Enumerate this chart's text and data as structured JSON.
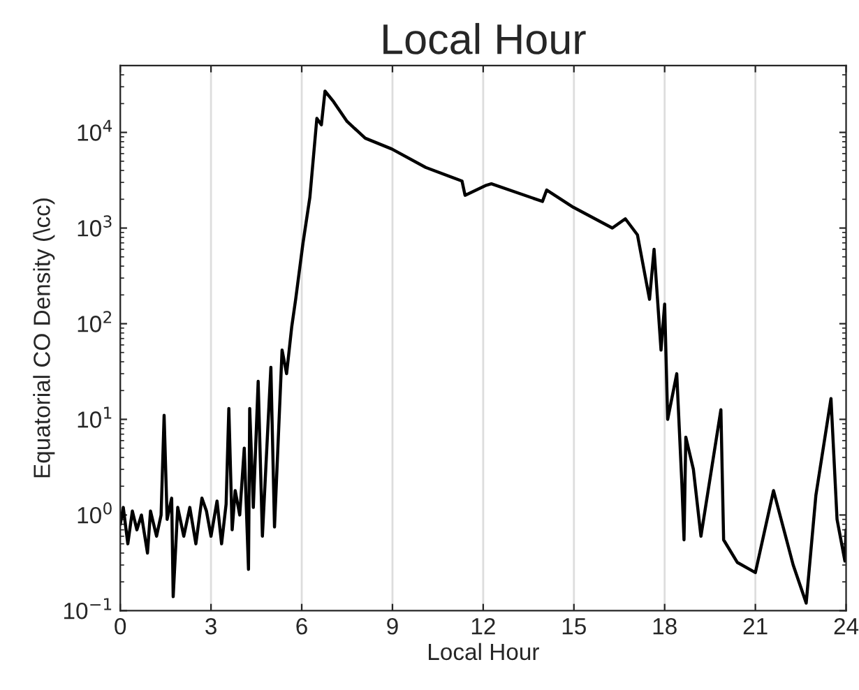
{
  "chart_data": {
    "type": "line",
    "title": "Local Hour",
    "xlabel": "Local Hour",
    "ylabel": "Equatorial CO Density (\\cc)",
    "x": [
      0,
      0.1,
      0.25,
      0.4,
      0.55,
      0.7,
      0.9,
      1.0,
      1.2,
      1.35,
      1.45,
      1.55,
      1.7,
      1.75,
      1.9,
      2.1,
      2.3,
      2.5,
      2.7,
      2.85,
      3.0,
      3.2,
      3.35,
      3.5,
      3.59,
      3.7,
      3.8,
      3.95,
      4.1,
      4.24,
      4.28,
      4.4,
      4.56,
      4.7,
      4.98,
      5.1,
      5.35,
      5.5,
      5.67,
      5.8,
      6.04,
      6.27,
      6.5,
      6.65,
      6.77,
      7.05,
      7.5,
      8.1,
      8.98,
      10.1,
      11.3,
      11.4,
      12.1,
      12.27,
      13.96,
      14.1,
      14.98,
      16.27,
      16.7,
      17.1,
      17.5,
      17.65,
      17.88,
      18.0,
      18.1,
      18.4,
      18.57,
      18.64,
      18.7,
      18.95,
      19.2,
      19.86,
      19.95,
      20.4,
      21.0,
      21.6,
      22.25,
      22.68,
      23.0,
      23.5,
      23.7,
      23.96,
      24
    ],
    "series": [
      {
        "color": "#000000",
        "values": [
          0.8,
          1.2,
          0.5,
          1.1,
          0.7,
          1.0,
          0.4,
          1.1,
          0.6,
          1.0,
          11,
          0.9,
          1.5,
          0.14,
          1.2,
          0.6,
          1.2,
          0.5,
          1.5,
          1.1,
          0.6,
          1.4,
          0.5,
          1.3,
          13,
          0.7,
          1.8,
          1.0,
          5.0,
          0.27,
          13,
          1.2,
          25,
          0.6,
          35,
          0.75,
          53,
          30,
          93,
          180,
          690,
          2100,
          14000,
          12000,
          27000,
          21000,
          13000,
          8700,
          6700,
          4300,
          3100,
          2200,
          2800,
          2900,
          1900,
          2500,
          1650,
          1000,
          1250,
          850,
          180,
          600,
          53,
          160,
          10,
          30,
          2.1,
          0.55,
          6.5,
          3,
          0.6,
          12.6,
          0.55,
          0.32,
          0.25,
          1.8,
          0.3,
          0.12,
          1.6,
          16.5,
          0.9,
          0.33,
          0.7
        ]
      }
    ],
    "log": "y",
    "xlim": [
      0,
      24
    ],
    "ylim": [
      0.1,
      50000
    ],
    "xticks": [
      0,
      3,
      6,
      9,
      12,
      15,
      18,
      21,
      24
    ],
    "yticks": [
      {
        "value": 0.1,
        "label": "10$^{−1}$"
      },
      {
        "value": 1,
        "label": "10$^{0}$"
      },
      {
        "value": 10,
        "label": "10$^{1}$"
      },
      {
        "value": 100,
        "label": "10$^{2}$"
      },
      {
        "value": 1000,
        "label": "10$^{3}$"
      },
      {
        "value": 10000,
        "label": "10$^{4}$"
      }
    ],
    "grid": "x",
    "marker": "none",
    "line_style": "solid"
  }
}
